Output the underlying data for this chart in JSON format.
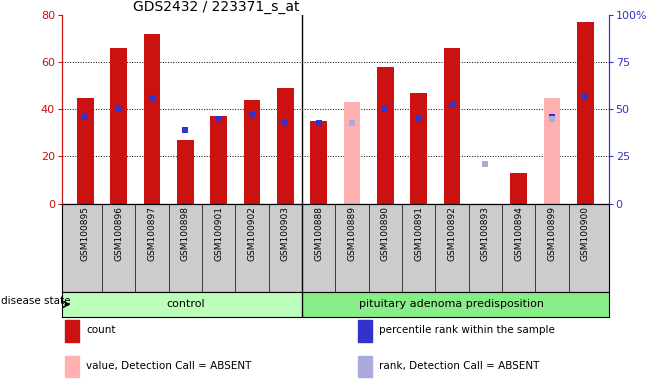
{
  "title": "GDS2432 / 223371_s_at",
  "samples": [
    "GSM100895",
    "GSM100896",
    "GSM100897",
    "GSM100898",
    "GSM100901",
    "GSM100902",
    "GSM100903",
    "GSM100888",
    "GSM100889",
    "GSM100890",
    "GSM100891",
    "GSM100892",
    "GSM100893",
    "GSM100894",
    "GSM100899",
    "GSM100900"
  ],
  "groups": [
    "control",
    "control",
    "control",
    "control",
    "control",
    "control",
    "control",
    "pituitary adenoma predisposition",
    "pituitary adenoma predisposition",
    "pituitary adenoma predisposition",
    "pituitary adenoma predisposition",
    "pituitary adenoma predisposition",
    "pituitary adenoma predisposition",
    "pituitary adenoma predisposition",
    "pituitary adenoma predisposition",
    "pituitary adenoma predisposition"
  ],
  "count_values": [
    45,
    66,
    72,
    27,
    37,
    44,
    49,
    35,
    null,
    58,
    47,
    66,
    null,
    13,
    null,
    77
  ],
  "count_absent": [
    null,
    null,
    null,
    null,
    null,
    null,
    null,
    null,
    43,
    null,
    null,
    null,
    null,
    null,
    45,
    null
  ],
  "percentile_rank": [
    46,
    51,
    56,
    39,
    45,
    47,
    43,
    43,
    null,
    50,
    45,
    53,
    null,
    null,
    46,
    57
  ],
  "rank_absent": [
    null,
    null,
    null,
    null,
    null,
    null,
    null,
    null,
    43,
    null,
    null,
    null,
    21,
    null,
    45,
    null
  ],
  "ylim_left": [
    0,
    80
  ],
  "ylim_right": [
    0,
    100
  ],
  "yticks_left": [
    0,
    20,
    40,
    60,
    80
  ],
  "yticks_right": [
    0,
    25,
    50,
    75,
    100
  ],
  "bar_color_normal": "#CC1111",
  "bar_color_absent": "#FFB0B0",
  "dot_color_normal": "#3333CC",
  "dot_color_absent": "#AAAADD",
  "control_label": "control",
  "disease_label": "pituitary adenoma predisposition",
  "disease_state_label": "disease state",
  "legend_items": [
    {
      "label": "count",
      "color": "#CC1111"
    },
    {
      "label": "percentile rank within the sample",
      "color": "#3333CC"
    },
    {
      "label": "value, Detection Call = ABSENT",
      "color": "#FFB0B0"
    },
    {
      "label": "rank, Detection Call = ABSENT",
      "color": "#AAAADD"
    }
  ],
  "bar_width": 0.5,
  "background_color": "#CCCCCC",
  "group_color_control": "#BBFFBB",
  "group_color_disease": "#88EE88",
  "n_control": 7
}
